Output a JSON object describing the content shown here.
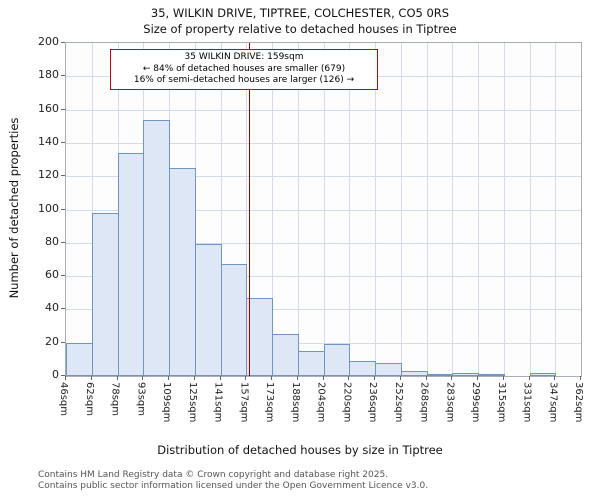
{
  "chart_data": {
    "type": "bar",
    "title": "35, WILKIN DRIVE, TIPTREE, COLCHESTER, CO5 0RS",
    "subtitle": "Size of property relative to detached houses in Tiptree",
    "xlabel": "Distribution of detached houses by size in Tiptree",
    "ylabel": "Number of detached properties",
    "categories": [
      "46sqm",
      "62sqm",
      "78sqm",
      "93sqm",
      "109sqm",
      "125sqm",
      "141sqm",
      "157sqm",
      "173sqm",
      "188sqm",
      "204sqm",
      "220sqm",
      "236sqm",
      "252sqm",
      "268sqm",
      "283sqm",
      "299sqm",
      "315sqm",
      "331sqm",
      "347sqm",
      "362sqm"
    ],
    "values": [
      20,
      98,
      134,
      154,
      125,
      79,
      67,
      47,
      25,
      15,
      19,
      9,
      8,
      3,
      1,
      2,
      1,
      0,
      2,
      0
    ],
    "ylim": [
      0,
      200
    ],
    "ytick_step": 20,
    "grid": true,
    "legend": false,
    "bar_fill": "#dde7f5",
    "bar_stroke": "#6e94c9",
    "grid_color": "#d3dcec",
    "marker": {
      "value_sqm": 159,
      "color": "#a00000"
    },
    "annotation": {
      "line1": "35 WILKIN DRIVE: 159sqm",
      "line2": "← 84% of detached houses are smaller (679)",
      "line3": "16% of semi-detached houses are larger (126) →",
      "border_color": "#cc0000"
    }
  },
  "footer": {
    "line1": "Contains HM Land Registry data © Crown copyright and database right 2025.",
    "line2": "Contains public sector information licensed under the Open Government Licence v3.0."
  }
}
